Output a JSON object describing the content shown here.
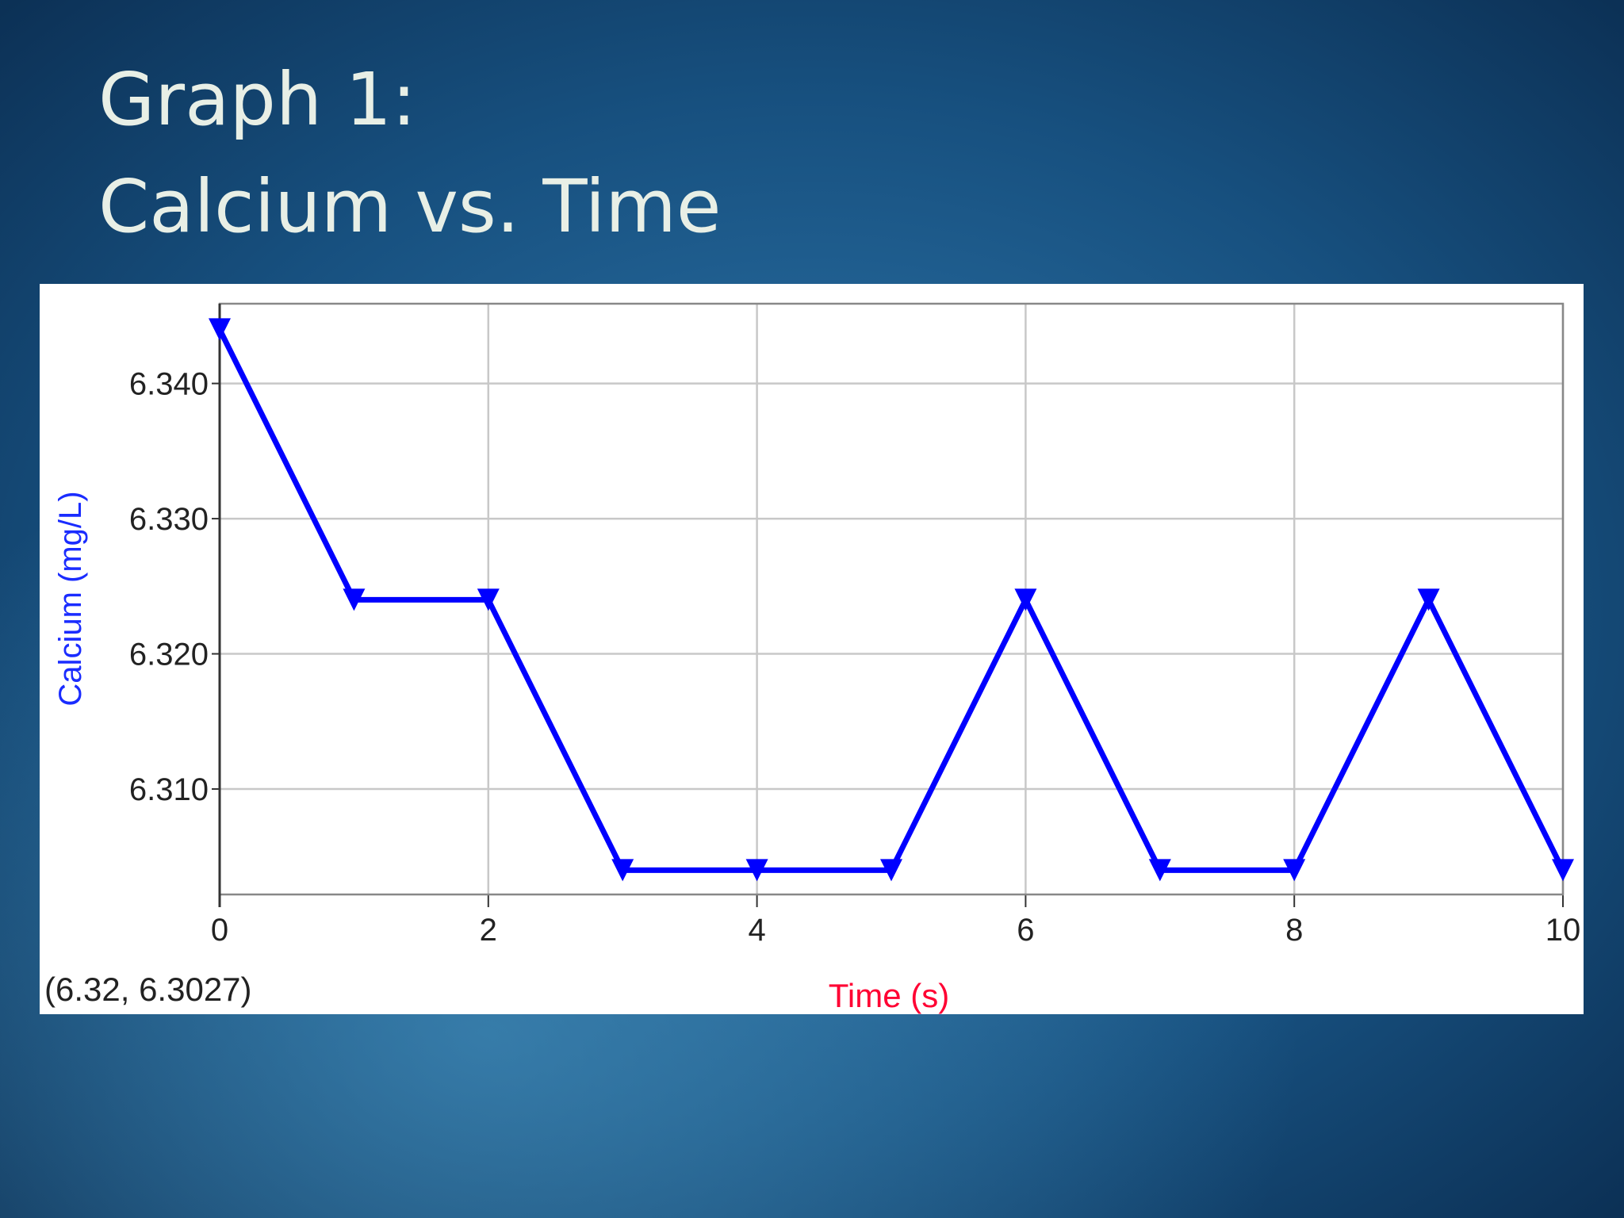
{
  "slide": {
    "title_lines": [
      "Graph 1:",
      "Calcium vs. Time"
    ]
  },
  "chart_data": {
    "type": "line",
    "x_label": "Time (s)",
    "y_label": "Calcium (mg/L)",
    "annotation": "(6.32, 6.3027)",
    "x": [
      0,
      1,
      2,
      3,
      4,
      5,
      6,
      7,
      8,
      9,
      10
    ],
    "values": [
      6.344,
      6.324,
      6.324,
      6.304,
      6.304,
      6.304,
      6.324,
      6.304,
      6.304,
      6.324,
      6.304
    ],
    "color": "#0000ff",
    "xlim": [
      0,
      10
    ],
    "xticks": [
      0,
      2,
      4,
      6,
      8,
      10
    ],
    "ylim": [
      6.3022,
      6.3459
    ],
    "yticks": [
      {
        "value": 6.31,
        "label": "6.310"
      },
      {
        "value": 6.32,
        "label": "6.320"
      },
      {
        "value": 6.33,
        "label": "6.330"
      },
      {
        "value": 6.34,
        "label": "6.340"
      }
    ],
    "grid": true
  }
}
